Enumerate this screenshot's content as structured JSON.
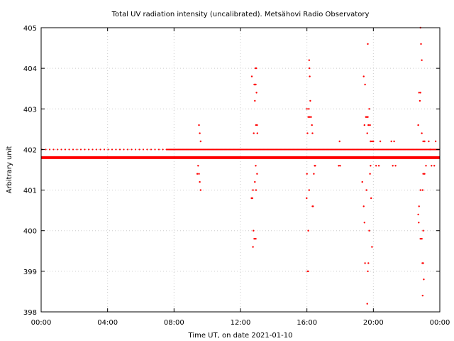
{
  "chart_data": {
    "type": "scatter",
    "title": "Total UV radiation intensity (uncalibrated). Metsähovi Radio Observatory",
    "xlabel": "Time UT, on date 2021-01-10",
    "ylabel": "Arbitrary unit",
    "xlim": [
      "00:00",
      "24:00"
    ],
    "ylim": [
      398,
      405
    ],
    "x_ticks": [
      "00:00",
      "04:00",
      "08:00",
      "12:00",
      "16:00",
      "20:00",
      "00:00"
    ],
    "y_ticks": [
      398,
      399,
      400,
      401,
      402,
      403,
      404,
      405
    ],
    "grid": true,
    "marker_color": "#ff0000",
    "baseline": [
      {
        "x_range": [
          "00:00",
          "24:00"
        ],
        "y": 401.8,
        "density": "continuous"
      },
      {
        "x_range": [
          "00:00",
          "07:30"
        ],
        "y": 402.0,
        "density": "sparse"
      },
      {
        "x_range": [
          "07:30",
          "24:00"
        ],
        "y": 402.0,
        "density": "dense"
      }
    ],
    "series": [
      {
        "values": [
          [
            "09:30",
            402.6
          ],
          [
            "09:33",
            402.4
          ],
          [
            "09:36",
            402.2
          ],
          [
            "09:27",
            401.6
          ],
          [
            "09:30",
            401.4
          ],
          [
            "09:33",
            401.2
          ],
          [
            "09:36",
            401.0
          ],
          [
            "09:24",
            401.4
          ],
          [
            "12:41",
            403.8
          ],
          [
            "12:45",
            401.0
          ],
          [
            "12:40",
            400.8
          ],
          [
            "12:43",
            400.8
          ],
          [
            "12:47",
            400.0
          ],
          [
            "12:45",
            399.6
          ],
          [
            "12:50",
            399.8
          ],
          [
            "12:55",
            399.8
          ],
          [
            "12:52",
            403.2
          ],
          [
            "12:55",
            403.6
          ],
          [
            "12:50",
            403.6
          ],
          [
            "12:54",
            404.0
          ],
          [
            "12:57",
            404.0
          ],
          [
            "12:58",
            403.4
          ],
          [
            "12:56",
            402.6
          ],
          [
            "13:00",
            402.6
          ],
          [
            "13:01",
            402.4
          ],
          [
            "12:48",
            402.4
          ],
          [
            "12:55",
            401.6
          ],
          [
            "12:52",
            401.2
          ],
          [
            "12:56",
            401.0
          ],
          [
            "13:00",
            401.4
          ],
          [
            "16:00",
            403.0
          ],
          [
            "16:02",
            402.4
          ],
          [
            "16:05",
            402.8
          ],
          [
            "16:07",
            403.0
          ],
          [
            "16:08",
            404.2
          ],
          [
            "16:10",
            403.8
          ],
          [
            "16:09",
            404.0
          ],
          [
            "16:12",
            403.2
          ],
          [
            "16:10",
            402.8
          ],
          [
            "16:15",
            402.8
          ],
          [
            "16:18",
            402.6
          ],
          [
            "16:20",
            402.4
          ],
          [
            "16:00",
            401.4
          ],
          [
            "15:59",
            400.8
          ],
          [
            "16:05",
            400.0
          ],
          [
            "16:02",
            399.0
          ],
          [
            "16:05",
            399.0
          ],
          [
            "16:08",
            401.0
          ],
          [
            "16:20",
            400.6
          ],
          [
            "16:22",
            400.6
          ],
          [
            "16:25",
            401.4
          ],
          [
            "16:28",
            401.6
          ],
          [
            "16:30",
            401.6
          ],
          [
            "17:58",
            402.2
          ],
          [
            "17:55",
            401.6
          ],
          [
            "18:00",
            401.6
          ],
          [
            "19:25",
            403.8
          ],
          [
            "19:30",
            403.6
          ],
          [
            "19:33",
            402.8
          ],
          [
            "19:28",
            402.6
          ],
          [
            "19:36",
            402.8
          ],
          [
            "19:40",
            402.8
          ],
          [
            "19:38",
            402.4
          ],
          [
            "19:42",
            402.6
          ],
          [
            "19:40",
            404.6
          ],
          [
            "19:45",
            403.0
          ],
          [
            "19:48",
            402.6
          ],
          [
            "19:50",
            402.2
          ],
          [
            "19:20",
            401.2
          ],
          [
            "19:25",
            400.6
          ],
          [
            "19:28",
            400.2
          ],
          [
            "19:30",
            399.2
          ],
          [
            "19:35",
            401.0
          ],
          [
            "19:40",
            399.0
          ],
          [
            "19:42",
            399.2
          ],
          [
            "19:45",
            400.0
          ],
          [
            "19:48",
            401.4
          ],
          [
            "19:50",
            401.6
          ],
          [
            "19:52",
            400.8
          ],
          [
            "19:55",
            399.6
          ],
          [
            "19:38",
            398.2
          ],
          [
            "19:55",
            402.2
          ],
          [
            "20:00",
            402.2
          ],
          [
            "20:05",
            401.8
          ],
          [
            "20:10",
            401.6
          ],
          [
            "20:20",
            401.6
          ],
          [
            "20:25",
            402.2
          ],
          [
            "21:05",
            402.2
          ],
          [
            "21:10",
            401.6
          ],
          [
            "21:15",
            402.2
          ],
          [
            "21:20",
            401.6
          ],
          [
            "22:50",
            405.0
          ],
          [
            "22:52",
            404.6
          ],
          [
            "22:55",
            404.2
          ],
          [
            "22:45",
            403.4
          ],
          [
            "22:50",
            403.4
          ],
          [
            "22:48",
            403.2
          ],
          [
            "22:42",
            402.6
          ],
          [
            "22:55",
            402.4
          ],
          [
            "23:00",
            402.2
          ],
          [
            "23:05",
            402.2
          ],
          [
            "23:10",
            401.6
          ],
          [
            "23:05",
            401.4
          ],
          [
            "23:00",
            401.4
          ],
          [
            "22:58",
            401.0
          ],
          [
            "22:50",
            401.0
          ],
          [
            "22:45",
            400.6
          ],
          [
            "22:42",
            400.4
          ],
          [
            "22:44",
            400.2
          ],
          [
            "22:50",
            399.8
          ],
          [
            "22:55",
            399.8
          ],
          [
            "23:00",
            400.0
          ],
          [
            "22:57",
            399.2
          ],
          [
            "23:00",
            399.2
          ],
          [
            "23:02",
            398.8
          ],
          [
            "22:58",
            398.4
          ],
          [
            "23:20",
            402.2
          ],
          [
            "23:25",
            402.0
          ],
          [
            "23:30",
            401.6
          ],
          [
            "23:40",
            401.6
          ],
          [
            "23:45",
            402.2
          ]
        ]
      }
    ]
  }
}
